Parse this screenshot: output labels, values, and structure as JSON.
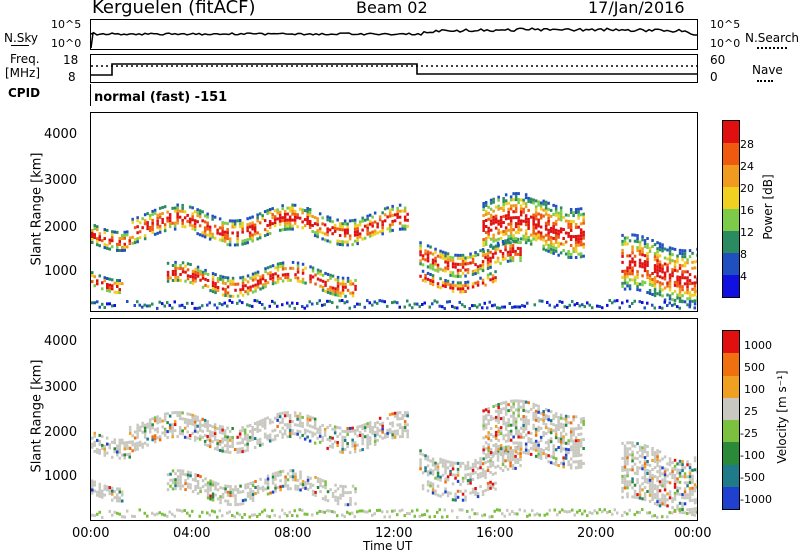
{
  "header": {
    "station": "Kerguelen (fitACF)",
    "beam": "Beam 02",
    "date": "17/Jan/2016"
  },
  "top_panels": {
    "nsky_label": "N.Sky",
    "nsky_ticks": [
      "10^5",
      "10^0"
    ],
    "nsearch_label": "N.Search",
    "nsearch_ticks": [
      "10^5",
      "10^0"
    ],
    "freq_label_1": "Freq.",
    "freq_label_2": "[MHz]",
    "freq_ticks": [
      "18",
      "8"
    ],
    "nave_label": "Nave",
    "nave_ticks": [
      "60",
      "0"
    ],
    "cpid_label": "CPID",
    "cpid_value": "normal (fast) -151"
  },
  "chart_data": [
    {
      "type": "heatmap",
      "name": "power",
      "ylabel": "Slant Range [km]",
      "ylim": [
        180,
        4500
      ],
      "yticks": [
        "4000",
        "3000",
        "2000",
        "1000"
      ],
      "colorbar_label": "Power [dB]",
      "colorbar_ticks": [
        "28",
        "24",
        "20",
        "16",
        "12",
        "8",
        "4"
      ],
      "colors": [
        "#1010e0",
        "#2050c0",
        "#2a8a60",
        "#7ccc4a",
        "#f0d020",
        "#f09a20",
        "#f05a10",
        "#e01010"
      ],
      "xlim": [
        0,
        24
      ],
      "echo_bands": [
        {
          "x": [
            0,
            1.2
          ],
          "y": [
            750,
            1050
          ]
        },
        {
          "x": [
            0,
            1.5
          ],
          "y": [
            1700,
            2100
          ]
        },
        {
          "x": [
            1.5,
            12.5
          ],
          "y": [
            1800,
            2350
          ]
        },
        {
          "x": [
            3,
            10.5
          ],
          "y": [
            650,
            1100
          ]
        },
        {
          "x": [
            13,
            17
          ],
          "y": [
            1100,
            1600
          ]
        },
        {
          "x": [
            13,
            16
          ],
          "y": [
            750,
            1000
          ]
        },
        {
          "x": [
            15.5,
            19.5
          ],
          "y": [
            1500,
            2600
          ]
        },
        {
          "x": [
            21,
            24
          ],
          "y": [
            500,
            1700
          ]
        }
      ]
    },
    {
      "type": "heatmap",
      "name": "velocity",
      "ylabel": "Slant Range [km]",
      "xlabel": "Time UT",
      "ylim": [
        180,
        4500
      ],
      "yticks": [
        "4000",
        "3000",
        "2000",
        "1000"
      ],
      "xticks": [
        "00:00",
        "04:00",
        "08:00",
        "12:00",
        "16:00",
        "20:00",
        "00:00"
      ],
      "colorbar_label": "Velocity [m s⁻¹]",
      "colorbar_ticks": [
        "1000",
        "500",
        "100",
        "25",
        "-25",
        "-100",
        "-500",
        "-1000"
      ],
      "colors": [
        "#2040d0",
        "#1f7a8a",
        "#2a8a3a",
        "#7cc040",
        "#c8c8c0",
        "#f0a020",
        "#f07010",
        "#e01010"
      ],
      "xlim": [
        0,
        24
      ]
    }
  ]
}
